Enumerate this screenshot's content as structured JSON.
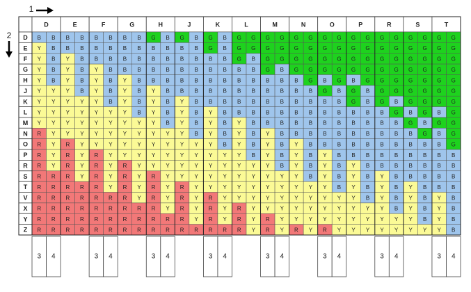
{
  "axis_labels": {
    "columns": "1",
    "rows": "2"
  },
  "colors": {
    "B": "#9fc5ec",
    "G": "#1ed21e",
    "Y": "#fbfa96",
    "R": "#f27878"
  },
  "columns": [
    "D",
    "E",
    "F",
    "G",
    "H",
    "J",
    "K",
    "L",
    "M",
    "N",
    "O",
    "P",
    "R",
    "S",
    "T"
  ],
  "rows": [
    {
      "label": "D",
      "cells": [
        "B",
        "B",
        "B",
        "B",
        "B",
        "B",
        "B",
        "B",
        "G",
        "B",
        "G",
        "B",
        "G",
        "B",
        "G",
        "G",
        "G",
        "G",
        "G",
        "G",
        "G",
        "G",
        "G",
        "G",
        "G",
        "G",
        "G",
        "G",
        "G",
        "G"
      ]
    },
    {
      "label": "E",
      "cells": [
        "Y",
        "B",
        "B",
        "B",
        "B",
        "B",
        "B",
        "B",
        "B",
        "B",
        "B",
        "B",
        "G",
        "B",
        "G",
        "G",
        "G",
        "G",
        "G",
        "G",
        "G",
        "G",
        "G",
        "G",
        "G",
        "G",
        "G",
        "G",
        "G",
        "G"
      ]
    },
    {
      "label": "F",
      "cells": [
        "Y",
        "B",
        "Y",
        "B",
        "B",
        "B",
        "B",
        "B",
        "B",
        "B",
        "B",
        "B",
        "B",
        "B",
        "G",
        "B",
        "G",
        "G",
        "G",
        "G",
        "G",
        "G",
        "G",
        "G",
        "G",
        "G",
        "G",
        "G",
        "G",
        "G"
      ]
    },
    {
      "label": "G",
      "cells": [
        "Y",
        "B",
        "Y",
        "B",
        "Y",
        "B",
        "B",
        "B",
        "B",
        "B",
        "B",
        "B",
        "B",
        "B",
        "B",
        "B",
        "G",
        "B",
        "G",
        "G",
        "G",
        "G",
        "G",
        "G",
        "G",
        "G",
        "G",
        "G",
        "G",
        "G"
      ]
    },
    {
      "label": "H",
      "cells": [
        "Y",
        "B",
        "Y",
        "B",
        "Y",
        "B",
        "Y",
        "B",
        "B",
        "B",
        "B",
        "B",
        "B",
        "B",
        "B",
        "B",
        "B",
        "B",
        "B",
        "G",
        "B",
        "G",
        "B",
        "G",
        "G",
        "G",
        "G",
        "G",
        "G",
        "G"
      ]
    },
    {
      "label": "J",
      "cells": [
        "Y",
        "Y",
        "Y",
        "B",
        "Y",
        "B",
        "Y",
        "B",
        "Y",
        "B",
        "B",
        "B",
        "B",
        "B",
        "B",
        "B",
        "B",
        "B",
        "B",
        "B",
        "G",
        "B",
        "G",
        "B",
        "G",
        "G",
        "G",
        "G",
        "G",
        "G"
      ]
    },
    {
      "label": "K",
      "cells": [
        "Y",
        "Y",
        "Y",
        "Y",
        "Y",
        "B",
        "Y",
        "B",
        "Y",
        "B",
        "Y",
        "B",
        "B",
        "B",
        "B",
        "B",
        "B",
        "B",
        "B",
        "B",
        "B",
        "B",
        "G",
        "B",
        "G",
        "B",
        "G",
        "G",
        "G",
        "G"
      ]
    },
    {
      "label": "L",
      "cells": [
        "Y",
        "Y",
        "Y",
        "Y",
        "Y",
        "Y",
        "Y",
        "B",
        "Y",
        "B",
        "Y",
        "B",
        "Y",
        "B",
        "B",
        "B",
        "B",
        "B",
        "B",
        "B",
        "B",
        "B",
        "B",
        "B",
        "B",
        "G",
        "B",
        "G",
        "B",
        "G"
      ]
    },
    {
      "label": "M",
      "cells": [
        "Y",
        "Y",
        "Y",
        "Y",
        "Y",
        "Y",
        "Y",
        "Y",
        "Y",
        "B",
        "Y",
        "B",
        "Y",
        "B",
        "Y",
        "B",
        "B",
        "B",
        "B",
        "B",
        "B",
        "B",
        "B",
        "B",
        "B",
        "B",
        "G",
        "B",
        "G",
        "G"
      ]
    },
    {
      "label": "N",
      "cells": [
        "R",
        "Y",
        "Y",
        "Y",
        "Y",
        "Y",
        "Y",
        "Y",
        "Y",
        "Y",
        "Y",
        "B",
        "Y",
        "B",
        "Y",
        "B",
        "Y",
        "B",
        "B",
        "B",
        "B",
        "B",
        "B",
        "B",
        "B",
        "B",
        "B",
        "G",
        "B",
        "G"
      ]
    },
    {
      "label": "O",
      "cells": [
        "R",
        "Y",
        "R",
        "Y",
        "Y",
        "Y",
        "Y",
        "Y",
        "Y",
        "Y",
        "Y",
        "Y",
        "Y",
        "B",
        "Y",
        "B",
        "Y",
        "B",
        "Y",
        "B",
        "B",
        "B",
        "B",
        "B",
        "B",
        "B",
        "B",
        "B",
        "B",
        "G"
      ]
    },
    {
      "label": "P",
      "cells": [
        "R",
        "Y",
        "R",
        "Y",
        "R",
        "Y",
        "Y",
        "Y",
        "Y",
        "Y",
        "Y",
        "Y",
        "Y",
        "Y",
        "Y",
        "B",
        "Y",
        "B",
        "Y",
        "B",
        "Y",
        "B",
        "B",
        "B",
        "B",
        "B",
        "B",
        "B",
        "B",
        "B"
      ]
    },
    {
      "label": "R",
      "cells": [
        "R",
        "Y",
        "R",
        "Y",
        "R",
        "Y",
        "R",
        "Y",
        "Y",
        "Y",
        "Y",
        "Y",
        "Y",
        "Y",
        "Y",
        "Y",
        "Y",
        "B",
        "Y",
        "B",
        "Y",
        "B",
        "Y",
        "B",
        "B",
        "B",
        "B",
        "B",
        "B",
        "B"
      ]
    },
    {
      "label": "S",
      "cells": [
        "R",
        "R",
        "R",
        "Y",
        "R",
        "Y",
        "R",
        "Y",
        "R",
        "Y",
        "Y",
        "Y",
        "Y",
        "Y",
        "Y",
        "Y",
        "Y",
        "Y",
        "Y",
        "B",
        "Y",
        "B",
        "Y",
        "B",
        "Y",
        "B",
        "B",
        "B",
        "B",
        "B"
      ]
    },
    {
      "label": "T",
      "cells": [
        "R",
        "R",
        "R",
        "R",
        "R",
        "Y",
        "R",
        "Y",
        "R",
        "Y",
        "R",
        "Y",
        "Y",
        "Y",
        "Y",
        "Y",
        "Y",
        "Y",
        "Y",
        "Y",
        "Y",
        "B",
        "Y",
        "B",
        "Y",
        "B",
        "Y",
        "B",
        "B",
        "B"
      ]
    },
    {
      "label": "V",
      "cells": [
        "R",
        "R",
        "R",
        "R",
        "R",
        "R",
        "R",
        "Y",
        "R",
        "Y",
        "R",
        "Y",
        "R",
        "Y",
        "Y",
        "Y",
        "Y",
        "Y",
        "Y",
        "Y",
        "Y",
        "Y",
        "Y",
        "B",
        "Y",
        "B",
        "Y",
        "B",
        "Y",
        "B"
      ]
    },
    {
      "label": "X",
      "cells": [
        "R",
        "R",
        "R",
        "R",
        "R",
        "R",
        "R",
        "R",
        "R",
        "Y",
        "R",
        "Y",
        "R",
        "Y",
        "R",
        "Y",
        "Y",
        "Y",
        "Y",
        "Y",
        "Y",
        "Y",
        "Y",
        "Y",
        "Y",
        "B",
        "Y",
        "B",
        "Y",
        "B"
      ]
    },
    {
      "label": "Y",
      "cells": [
        "R",
        "R",
        "R",
        "R",
        "R",
        "R",
        "R",
        "R",
        "R",
        "R",
        "R",
        "Y",
        "R",
        "Y",
        "R",
        "Y",
        "R",
        "Y",
        "Y",
        "Y",
        "Y",
        "Y",
        "Y",
        "Y",
        "Y",
        "Y",
        "Y",
        "B",
        "Y",
        "B"
      ]
    },
    {
      "label": "Z",
      "cells": [
        "R",
        "R",
        "R",
        "R",
        "R",
        "R",
        "R",
        "R",
        "R",
        "R",
        "R",
        "R",
        "R",
        "R",
        "R",
        "Y",
        "R",
        "Y",
        "R",
        "Y",
        "R",
        "Y",
        "Y",
        "Y",
        "Y",
        "Y",
        "Y",
        "Y",
        "Y",
        "B"
      ]
    }
  ],
  "footer": [
    [
      "3",
      "4"
    ],
    null,
    [
      "3",
      "4"
    ],
    null,
    [
      "3",
      "4"
    ],
    null,
    [
      "3",
      "4"
    ],
    null,
    [
      "3",
      "4"
    ],
    null,
    [
      "3",
      "4"
    ],
    null,
    [
      "3",
      "4"
    ],
    null,
    [
      "3",
      "4"
    ]
  ]
}
